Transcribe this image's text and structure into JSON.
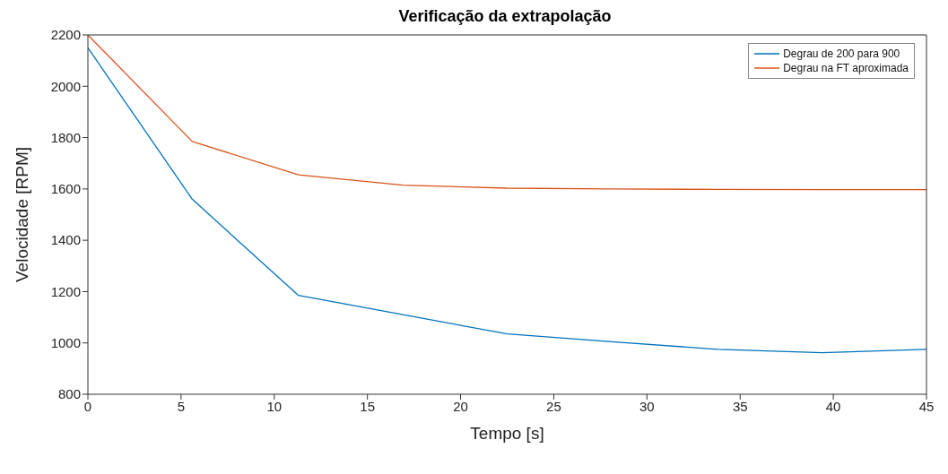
{
  "chart_data": {
    "type": "line",
    "title": "Verificação da extrapolação",
    "xlabel": "Tempo [s]",
    "ylabel": "Velocidade [RPM]",
    "x": [
      0,
      5.6,
      11.3,
      16.9,
      22.5,
      28.1,
      33.8,
      39.4,
      45
    ],
    "series": [
      {
        "name": "Degrau de 200 para 900",
        "color": "#0072bd",
        "values": [
          2150,
          1560,
          1185,
          1110,
          1035,
          1005,
          975,
          962,
          975
        ]
      },
      {
        "name": "Degrau na FT aproximada",
        "color": "#d95319",
        "values": [
          2200,
          1785,
          1655,
          1615,
          1603,
          1600,
          1598,
          1597,
          1597
        ]
      }
    ],
    "xlim": [
      0,
      45
    ],
    "xticks": [
      0,
      5,
      10,
      15,
      20,
      25,
      30,
      35,
      40,
      45
    ],
    "ylim": [
      800,
      2200
    ],
    "yticks": [
      800,
      1000,
      1200,
      1400,
      1600,
      1800,
      2000,
      2200
    ],
    "grid": false,
    "legend": "top right",
    "marker": "none",
    "line_style": "solid"
  }
}
